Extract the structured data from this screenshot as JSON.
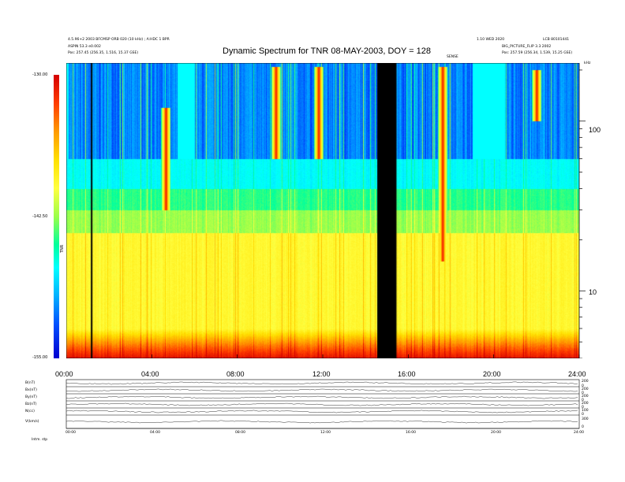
{
  "header": {
    "left_line1": "4.5.96+2 2003 BFCMSP ORB 020 (10 kHz) ; A:HDC 1 BPR",
    "left_line2": "ASPIN 53.3 e0.002",
    "left_line3": "Pos:   257.45 (256.35, 1.516, 15.37 GSE)",
    "right_line1": "1.10 WED 2020",
    "right_line2": "LCB 80101441",
    "right_line3": "BIG_PICTURE_FLIP 3.3 2002",
    "right_line4": "Pos:   257.59 (256.34, 1.539, 15.25 GSE)",
    "marker": "SENSE",
    "hz_unit": "kHz"
  },
  "chart_data": [
    {
      "type": "heatmap",
      "title": "Dynamic Spectrum for TNR 08-MAY-2003, DOY = 128",
      "x_ticks": [
        "00:00",
        "04:00",
        "08:00",
        "12:00",
        "16:00",
        "20:00",
        "24:00"
      ],
      "x_range_hours": [
        0,
        24
      ],
      "y_scale": "log",
      "y_range_khz": [
        4,
        220
      ],
      "y_ticks": [
        "100",
        "10"
      ],
      "colorbar": {
        "label": "TNR",
        "ticks": [
          "-130.00",
          "-142.50",
          "-155.00"
        ],
        "range": [
          -155,
          -130
        ],
        "colors": [
          "#0000d0",
          "#0050ff",
          "#00b0ff",
          "#00ffff",
          "#00ff9c",
          "#9aff4a",
          "#ffff40",
          "#ffe000",
          "#ff9a00",
          "#ff3c00",
          "#d40000"
        ]
      },
      "data_gaps_hours": [
        [
          1.15,
          1.22
        ],
        [
          14.55,
          15.45
        ]
      ],
      "features": [
        {
          "kind": "burst",
          "x_hours": 4.65,
          "y_top_khz": 120,
          "y_bottom_khz": 30
        },
        {
          "kind": "burst",
          "x_hours": 9.8,
          "y_top_khz": 210,
          "y_bottom_khz": 60
        },
        {
          "kind": "burst",
          "x_hours": 11.8,
          "y_top_khz": 210,
          "y_bottom_khz": 60
        },
        {
          "kind": "burst",
          "x_hours": 17.6,
          "y_top_khz": 210,
          "y_bottom_khz": 15
        },
        {
          "kind": "burst",
          "x_hours": 22.0,
          "y_top_khz": 200,
          "y_bottom_khz": 100
        }
      ]
    },
    {
      "type": "line",
      "title": "",
      "x_ticks": [
        "00:00",
        "04:00",
        "08:00",
        "12:00",
        "16:00",
        "20:00",
        "24:00"
      ],
      "series": [
        {
          "name": "B(nT)",
          "axis_ticks": [
            "200",
            "0"
          ]
        },
        {
          "name": "Bx(nT)",
          "axis_ticks": [
            "200",
            "0"
          ]
        },
        {
          "name": "By(nT)",
          "axis_ticks": [
            "200",
            "0"
          ]
        },
        {
          "name": "Bz(nT)",
          "axis_ticks": [
            "200",
            "0"
          ]
        },
        {
          "name": "N(cc)",
          "axis_ticks": [
            "100",
            "0"
          ]
        },
        {
          "name": "V(km/s)",
          "axis_ticks": [
            "300",
            "0"
          ]
        }
      ]
    }
  ],
  "footer": {
    "left": "Intm.   stp"
  }
}
